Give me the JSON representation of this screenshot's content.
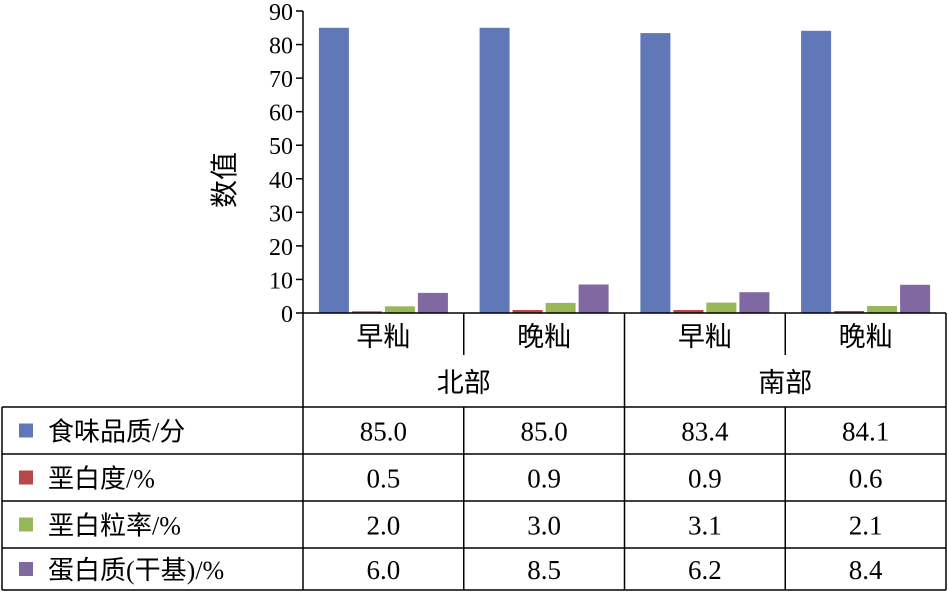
{
  "chart_data": {
    "type": "bar",
    "ylabel": "数值",
    "ylim": [
      0,
      90
    ],
    "yticks": [
      0,
      10,
      20,
      30,
      40,
      50,
      60,
      70,
      80,
      90
    ],
    "groups": [
      "北部",
      "南部"
    ],
    "categories": [
      "早籼",
      "晚籼",
      "早籼",
      "晚籼"
    ],
    "series": [
      {
        "name": "食味品质/分",
        "color": "#6078b8",
        "values": [
          85.0,
          85.0,
          83.4,
          84.1
        ],
        "labels": [
          "85.0",
          "85.0",
          "83.4",
          "84.1"
        ]
      },
      {
        "name": "垩白度/%",
        "color": "#b84848",
        "values": [
          0.5,
          0.9,
          0.9,
          0.6
        ],
        "labels": [
          "0.5",
          "0.9",
          "0.9",
          "0.6"
        ]
      },
      {
        "name": "垩白粒率/%",
        "color": "#98b858",
        "values": [
          2.0,
          3.0,
          3.1,
          2.1
        ],
        "labels": [
          "2.0",
          "3.0",
          "3.1",
          "2.1"
        ]
      },
      {
        "name": "蛋白质(干基)/%",
        "color": "#8068a0",
        "values": [
          6.0,
          8.5,
          6.2,
          8.4
        ],
        "labels": [
          "6.0",
          "8.5",
          "6.2",
          "8.4"
        ]
      }
    ],
    "legend": "data-table",
    "grid": false
  }
}
